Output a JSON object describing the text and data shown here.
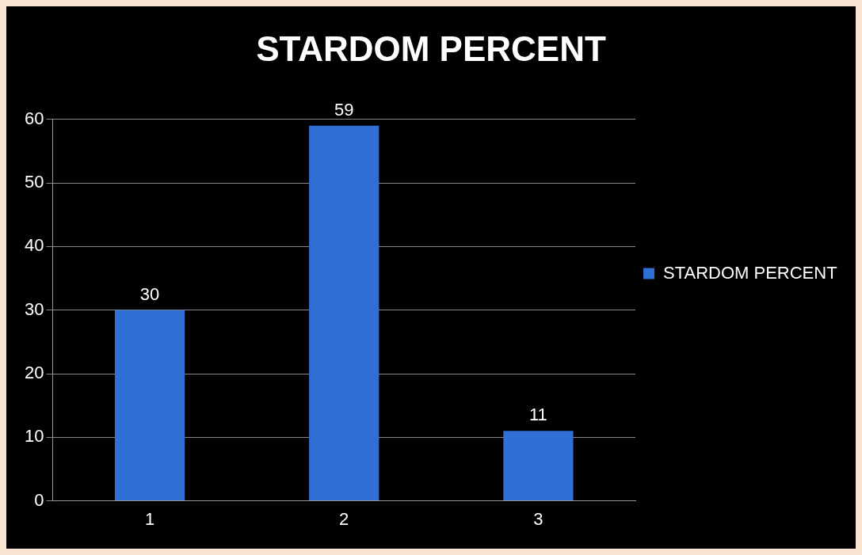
{
  "chart_data": {
    "type": "bar",
    "title": "STARDOM PERCENT",
    "categories": [
      "1",
      "2",
      "3"
    ],
    "series": [
      {
        "name": "STARDOM PERCENT",
        "color": "#2f6fd6",
        "values": [
          30,
          59,
          11
        ]
      }
    ],
    "ylim": [
      0,
      60
    ],
    "yticks": [
      0,
      10,
      20,
      30,
      40,
      50,
      60
    ],
    "grid": "y",
    "legend": "right",
    "data_labels": true
  }
}
